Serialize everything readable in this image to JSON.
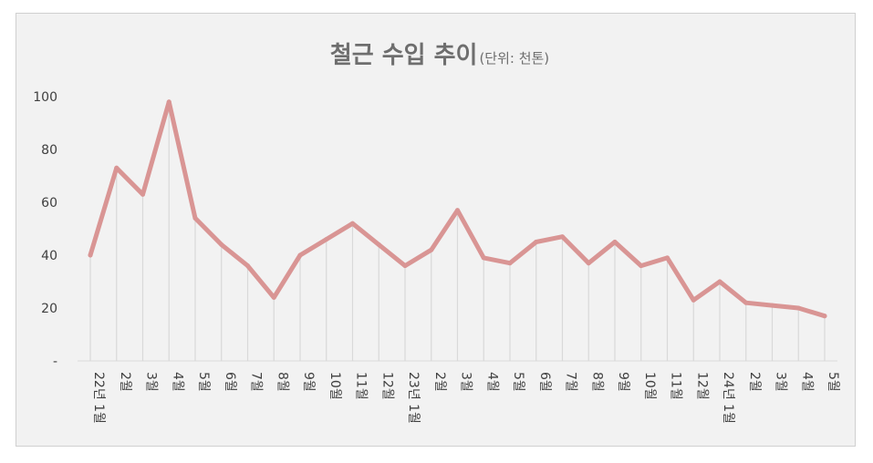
{
  "chart_data": {
    "type": "line",
    "title": "철근 수입 추이",
    "subtitle": "(단위: 천톤)",
    "xlabel": "",
    "ylabel": "",
    "ylim": [
      0,
      100
    ],
    "yticks": [
      {
        "value": 0,
        "label": "-"
      },
      {
        "value": 20,
        "label": "20"
      },
      {
        "value": 40,
        "label": "40"
      },
      {
        "value": 60,
        "label": "60"
      },
      {
        "value": 80,
        "label": "80"
      },
      {
        "value": 100,
        "label": "100"
      }
    ],
    "grid": "vertical drop lines",
    "legend": "none",
    "line_color": "#d99594",
    "drop_line_color": "#d9d9d9",
    "categories": [
      "22년 1월",
      "2월",
      "3월",
      "4월",
      "5월",
      "6월",
      "7월",
      "8월",
      "9월",
      "10월",
      "11월",
      "12월",
      "23년 1월",
      "2월",
      "3월",
      "4월",
      "5월",
      "6월",
      "7월",
      "8월",
      "9월",
      "10월",
      "11월",
      "12월",
      "24년 1월",
      "2월",
      "3월",
      "4월",
      "5월"
    ],
    "series": [
      {
        "values": [
          40,
          73,
          63,
          98,
          54,
          44,
          36,
          24,
          40,
          46,
          52,
          44,
          36,
          42,
          57,
          39,
          37,
          45,
          47,
          37,
          45,
          36,
          39,
          23,
          30,
          22,
          21,
          20,
          17
        ]
      }
    ]
  }
}
